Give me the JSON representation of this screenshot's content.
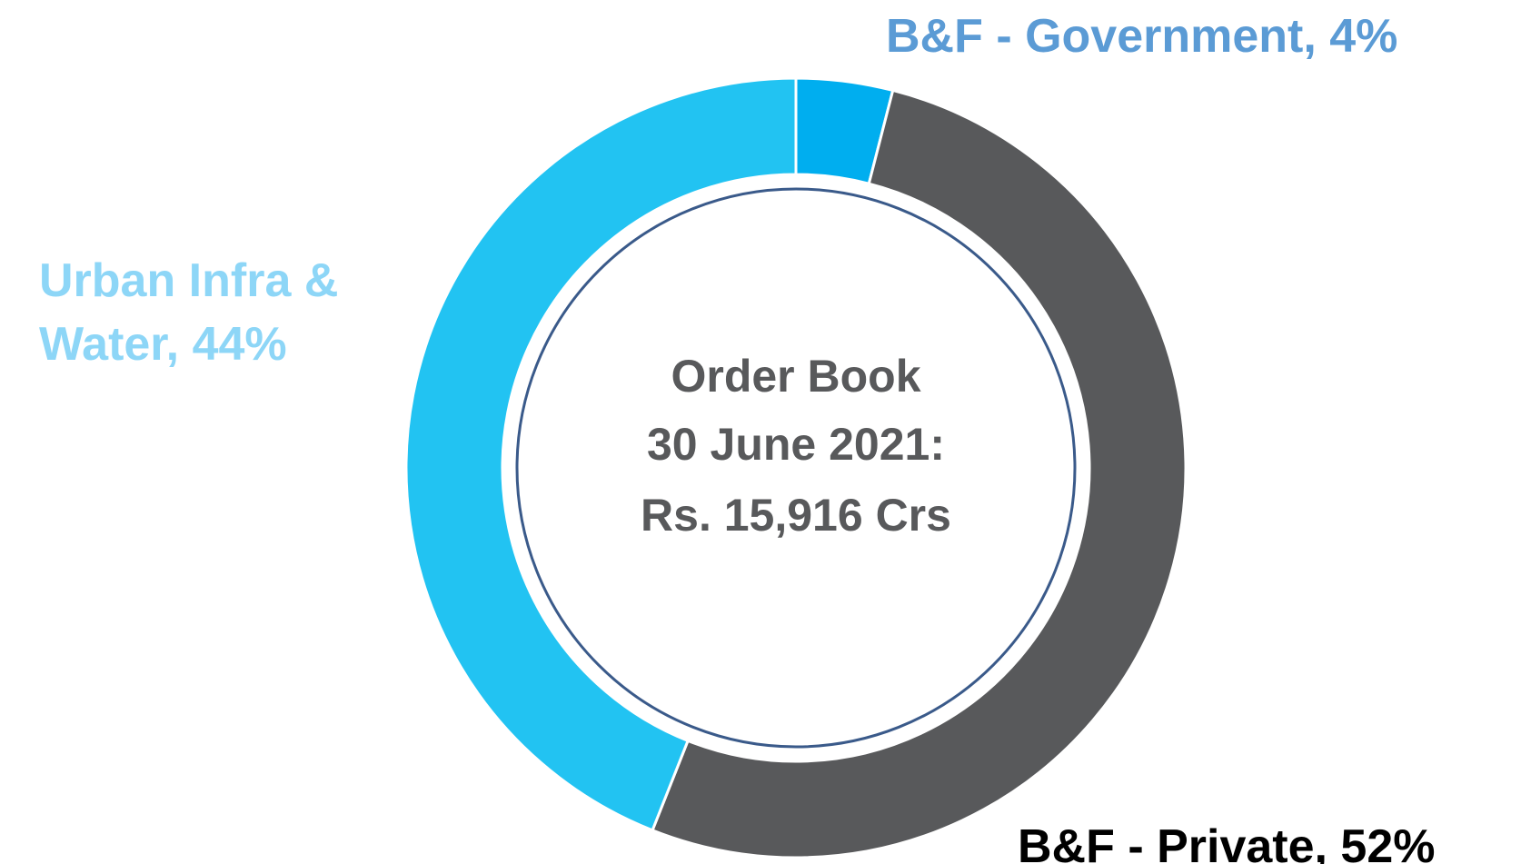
{
  "chart_data": {
    "type": "donut",
    "categories": [
      "B&F - Government",
      "B&F - Private",
      "Urban Infra & Water"
    ],
    "values": [
      4,
      52,
      44
    ],
    "value_labels": [
      "B&F - Government, 4%",
      "B&F - Private, 52%",
      "Urban Infra & Water, 44%"
    ],
    "colors": [
      "#00aeef",
      "#58595b",
      "#22c3f2"
    ],
    "label_colors": [
      "#5b9bd5",
      "#000000",
      "#8dd6f7"
    ],
    "center_text": [
      "Order Book",
      "30 June 2021:",
      "Rs. 15,916 Crs"
    ]
  }
}
